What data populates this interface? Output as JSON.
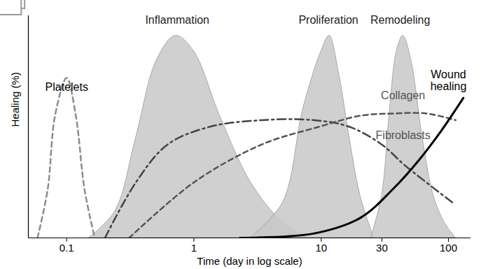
{
  "chart_data": {
    "type": "line",
    "x_label": "Time (day in log scale)",
    "y_label": "Healing (%)",
    "log": "x",
    "grid": false,
    "tick_labels": "x",
    "xlim": [
      0.05,
      150
    ],
    "xticks": [
      0.1,
      1,
      10,
      30,
      100
    ],
    "ylim": [
      0,
      100
    ],
    "series": [
      {
        "name": "Inflammation",
        "type": "area",
        "color": "#c8c8c8",
        "x": [
          0.15,
          0.24,
          0.35,
          0.51,
          0.72,
          1,
          1.6,
          2.8,
          5,
          8
        ],
        "values": [
          0,
          12,
          45,
          80,
          91,
          84,
          55,
          25,
          7,
          0
        ]
      },
      {
        "name": "Proliferation",
        "type": "area",
        "color": "#c8c8c8",
        "x": [
          2.8,
          5,
          7.2,
          10,
          11.6,
          13.8,
          16.7,
          20.3,
          26
        ],
        "values": [
          0,
          16,
          58,
          84,
          91,
          74,
          45,
          19,
          0
        ]
      },
      {
        "name": "Remodeling",
        "type": "area",
        "color": "#c8c8c8",
        "x": [
          24.6,
          30,
          34.3,
          39.2,
          44,
          51,
          62.6,
          76.4,
          93,
          114
        ],
        "values": [
          0,
          19,
          55,
          84,
          91,
          80,
          45,
          19,
          7,
          0
        ]
      },
      {
        "name": "Platelets",
        "type": "line",
        "color": "#8c8c8c",
        "line_style": "dashed",
        "x": [
          0.059,
          0.071,
          0.081,
          0.1,
          0.118,
          0.138,
          0.166
        ],
        "values": [
          0,
          22,
          55,
          72,
          55,
          22,
          0
        ]
      },
      {
        "name": "Fibroblasts",
        "type": "line",
        "color": "#444444",
        "line_style": "dashdot",
        "x": [
          0.2,
          0.35,
          0.62,
          1.33,
          3.4,
          8.8,
          16.7,
          30,
          44.7,
          67,
          107
        ],
        "values": [
          0,
          25,
          42,
          50,
          53,
          53,
          50,
          42,
          33,
          25,
          16
        ]
      },
      {
        "name": "Collagen",
        "type": "line",
        "color": "#555555",
        "line_style": "dashed",
        "x": [
          0.31,
          1,
          3.4,
          9.6,
          20.3,
          36.7,
          67,
          114
        ],
        "values": [
          0,
          25,
          42,
          50,
          55,
          56,
          56,
          53
        ]
      },
      {
        "name": "Wound healing",
        "type": "line",
        "color": "#000000",
        "line_style": "solid",
        "x": [
          2.3,
          8.8,
          20.3,
          36.7,
          58.6,
          87.3,
          131
        ],
        "values": [
          0,
          2,
          9,
          22,
          35,
          48,
          63
        ]
      }
    ],
    "annotations": [
      {
        "text": "Platelets",
        "x": 0.1,
        "y": 68
      },
      {
        "text": "Inflammation",
        "x": 0.74,
        "y": 98
      },
      {
        "text": "Proliferation",
        "x": 11.4,
        "y": 98
      },
      {
        "text": "Remodeling",
        "x": 41.8,
        "y": 98
      },
      {
        "text": "Collagen",
        "x": 44,
        "y": 64
      },
      {
        "text": "Fibroblasts",
        "x": 44,
        "y": 46
      },
      {
        "text": "Wound\nhealing",
        "x": 100,
        "y": 71
      }
    ]
  }
}
